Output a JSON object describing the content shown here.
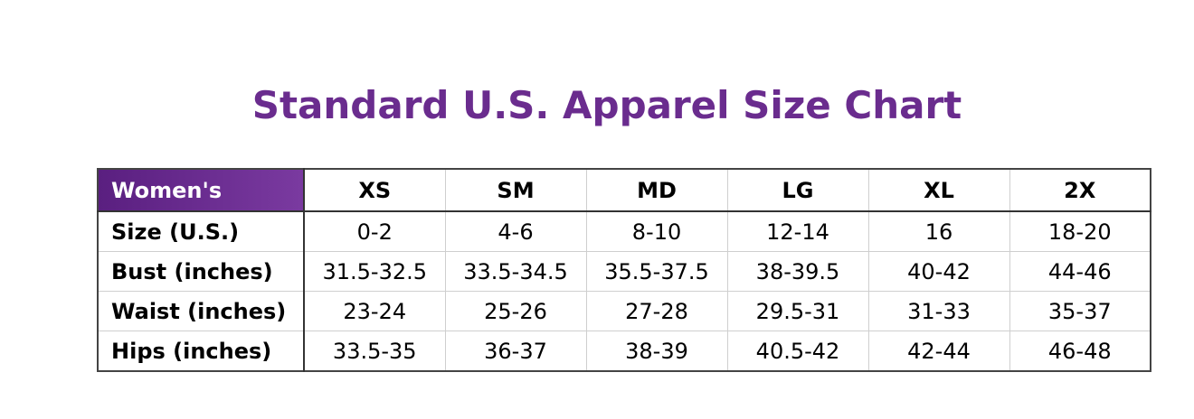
{
  "title": "Standard U.S. Apparel Size Chart",
  "table": {
    "corner_label": "Women's",
    "corner_color": "#6a2c8e",
    "columns": [
      "XS",
      "SM",
      "MD",
      "LG",
      "XL",
      "2X"
    ],
    "rows": [
      {
        "label": "Size (U.S.)",
        "values": [
          "0-2",
          "4-6",
          "8-10",
          "12-14",
          "16",
          "18-20"
        ]
      },
      {
        "label": "Bust (inches)",
        "values": [
          "31.5-32.5",
          "33.5-34.5",
          "35.5-37.5",
          "38-39.5",
          "40-42",
          "44-46"
        ]
      },
      {
        "label": "Waist (inches)",
        "values": [
          "23-24",
          "25-26",
          "27-28",
          "29.5-31",
          "31-33",
          "35-37"
        ]
      },
      {
        "label": "Hips (inches)",
        "values": [
          "33.5-35",
          "36-37",
          "38-39",
          "40.5-42",
          "42-44",
          "46-48"
        ]
      }
    ]
  }
}
